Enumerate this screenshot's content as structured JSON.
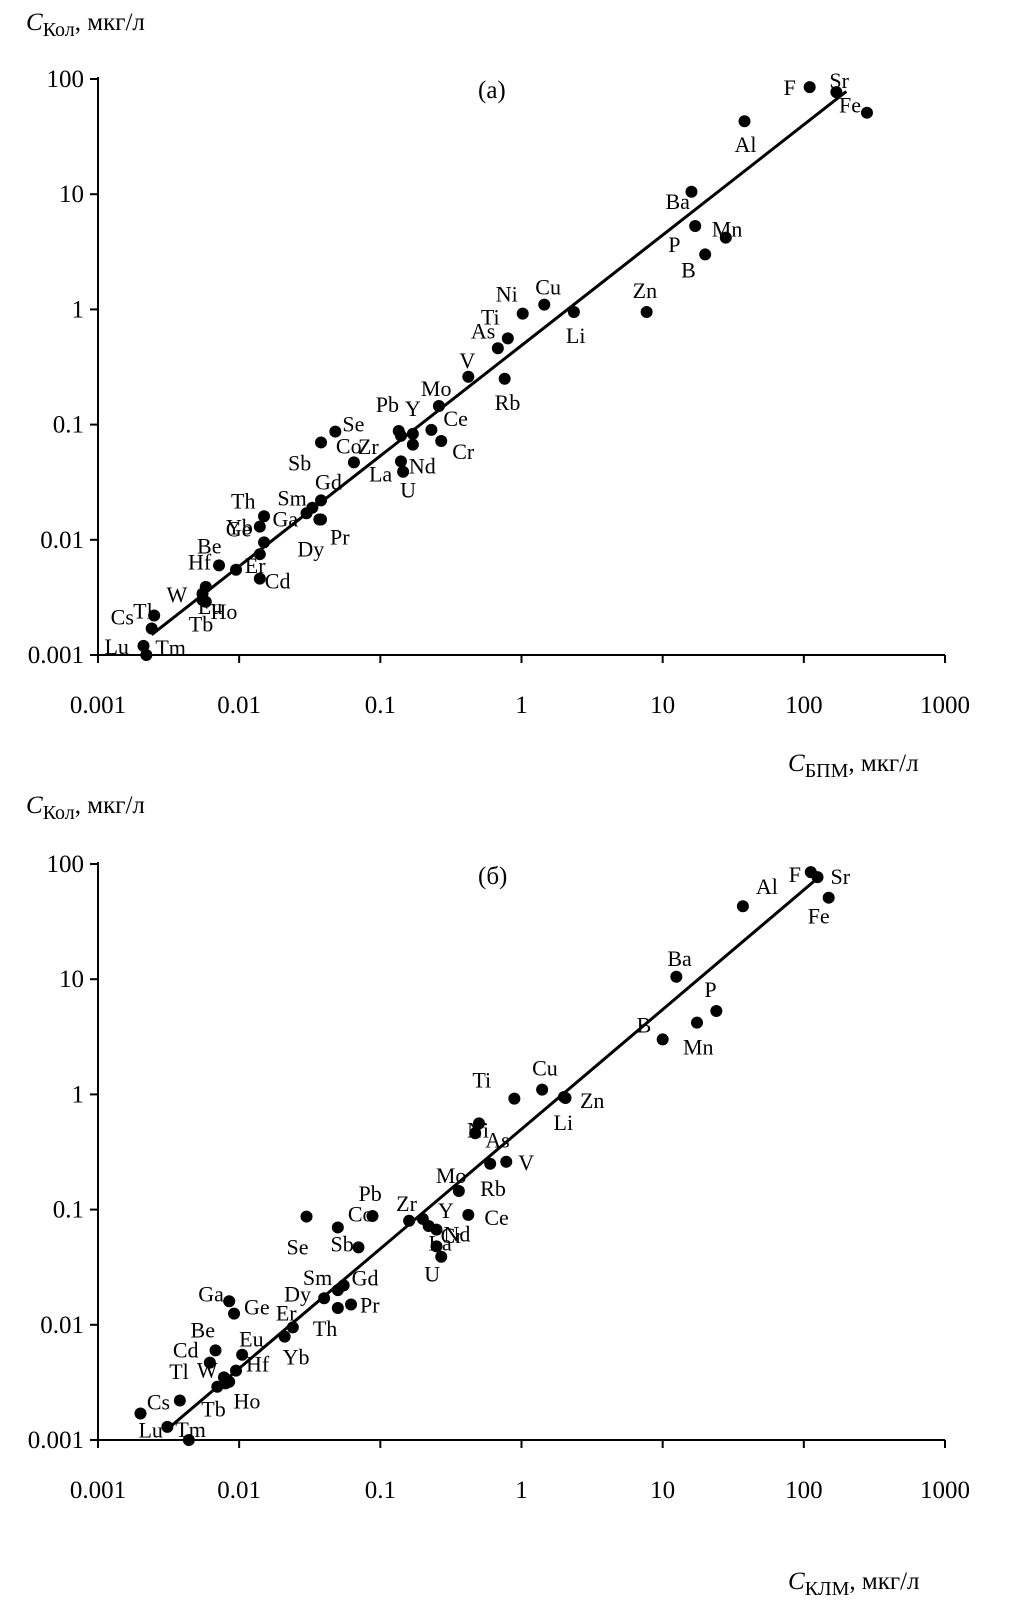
{
  "chart_data": [
    {
      "type": "scatter",
      "panel_label": "(а)",
      "xlabel": {
        "symbol": "C",
        "subscript": "БПМ",
        "unit": ", мкг/л"
      },
      "ylabel": {
        "symbol": "C",
        "subscript": "Кол",
        "unit": ", мкг/л"
      },
      "xscale": "log",
      "yscale": "log",
      "xlim": [
        0.001,
        1000
      ],
      "ylim": [
        0.001,
        100
      ],
      "xticks": [
        "0.001",
        "0.01",
        "0.1",
        "1",
        "10",
        "100",
        "1000"
      ],
      "yticks": [
        "0.001",
        "0.01",
        "0.1",
        "1",
        "10",
        "100"
      ],
      "grid": false,
      "trendline": {
        "x": [
          0.0024,
          200
        ],
        "y": [
          0.0015,
          78
        ]
      },
      "points": [
        {
          "label": "Sr",
          "x": 170,
          "y": 77
        },
        {
          "label": "F",
          "x": 110,
          "y": 85
        },
        {
          "label": "Fe",
          "x": 280,
          "y": 51
        },
        {
          "label": "Al",
          "x": 38,
          "y": 43
        },
        {
          "label": "Ba",
          "x": 16,
          "y": 10.5
        },
        {
          "label": "Mn",
          "x": 28,
          "y": 4.2
        },
        {
          "label": "P",
          "x": 17,
          "y": 5.3
        },
        {
          "label": "B",
          "x": 20,
          "y": 3.0
        },
        {
          "label": "Zn",
          "x": 7.7,
          "y": 0.95
        },
        {
          "label": "Cu",
          "x": 1.45,
          "y": 1.1
        },
        {
          "label": "Ni",
          "x": 1.02,
          "y": 0.92
        },
        {
          "label": "Li",
          "x": 2.35,
          "y": 0.95
        },
        {
          "label": "Ti",
          "x": 0.8,
          "y": 0.56
        },
        {
          "label": "As",
          "x": 0.68,
          "y": 0.46
        },
        {
          "label": "V",
          "x": 0.42,
          "y": 0.26
        },
        {
          "label": "Rb",
          "x": 0.76,
          "y": 0.25
        },
        {
          "label": "Mo",
          "x": 0.26,
          "y": 0.145
        },
        {
          "label": "Pb",
          "x": 0.135,
          "y": 0.088
        },
        {
          "label": "Y",
          "x": 0.17,
          "y": 0.083
        },
        {
          "label": "Ce",
          "x": 0.23,
          "y": 0.09
        },
        {
          "label": "Cr",
          "x": 0.27,
          "y": 0.072
        },
        {
          "label": "Zr",
          "x": 0.14,
          "y": 0.08
        },
        {
          "label": "Se",
          "x": 0.048,
          "y": 0.087
        },
        {
          "label": "Sb",
          "x": 0.038,
          "y": 0.07
        },
        {
          "label": "Co",
          "x": 0.065,
          "y": 0.047
        },
        {
          "label": "Nd",
          "x": 0.17,
          "y": 0.067
        },
        {
          "label": "La",
          "x": 0.14,
          "y": 0.048
        },
        {
          "label": "U",
          "x": 0.145,
          "y": 0.039
        },
        {
          "label": "Gd",
          "x": 0.038,
          "y": 0.022
        },
        {
          "label": "Sm",
          "x": 0.033,
          "y": 0.019
        },
        {
          "label": "Ga",
          "x": 0.03,
          "y": 0.017
        },
        {
          "label": "Dy",
          "x": 0.037,
          "y": 0.015
        },
        {
          "label": "Pr",
          "x": 0.038,
          "y": 0.015
        },
        {
          "label": "Th",
          "x": 0.015,
          "y": 0.016
        },
        {
          "label": "Ge",
          "x": 0.014,
          "y": 0.013
        },
        {
          "label": "Yb",
          "x": 0.015,
          "y": 0.0095
        },
        {
          "label": "Er",
          "x": 0.014,
          "y": 0.0075
        },
        {
          "label": "Be",
          "x": 0.0072,
          "y": 0.006
        },
        {
          "label": "Hf",
          "x": 0.0095,
          "y": 0.0055
        },
        {
          "label": "Cd",
          "x": 0.014,
          "y": 0.0046
        },
        {
          "label": "Eu",
          "x": 0.0058,
          "y": 0.0039
        },
        {
          "label": "W",
          "x": 0.0055,
          "y": 0.0034
        },
        {
          "label": "Tb",
          "x": 0.0058,
          "y": 0.0029
        },
        {
          "label": "Ho",
          "x": 0.0055,
          "y": 0.003
        },
        {
          "label": "Tl",
          "x": 0.0025,
          "y": 0.0022
        },
        {
          "label": "Cs",
          "x": 0.0024,
          "y": 0.0017
        },
        {
          "label": "Lu",
          "x": 0.0021,
          "y": 0.0012
        },
        {
          "label": "Tm",
          "x": 0.0022,
          "y": 0.001
        }
      ]
    },
    {
      "type": "scatter",
      "panel_label": "(б)",
      "xlabel": {
        "symbol": "C",
        "subscript": "КЛМ",
        "unit": ", мкг/л"
      },
      "ylabel": {
        "symbol": "C",
        "subscript": "Кол",
        "unit": ", мкг/л"
      },
      "xscale": "log",
      "yscale": "log",
      "xlim": [
        0.001,
        1000
      ],
      "ylim": [
        0.001,
        100
      ],
      "xticks": [
        "0.001",
        "0.01",
        "0.1",
        "1",
        "10",
        "100",
        "1000"
      ],
      "yticks": [
        "0.001",
        "0.01",
        "0.1",
        "1",
        "10",
        "100"
      ],
      "grid": false,
      "trendline": {
        "x": [
          0.003,
          120
        ],
        "y": [
          0.0012,
          72
        ]
      },
      "points": [
        {
          "label": "F",
          "x": 112,
          "y": 85
        },
        {
          "label": "Sr",
          "x": 125,
          "y": 77
        },
        {
          "label": "Fe",
          "x": 150,
          "y": 51
        },
        {
          "label": "Al",
          "x": 37,
          "y": 43
        },
        {
          "label": "Ba",
          "x": 12.5,
          "y": 10.5
        },
        {
          "label": "P",
          "x": 24,
          "y": 5.3
        },
        {
          "label": "Mn",
          "x": 17.5,
          "y": 4.2
        },
        {
          "label": "B",
          "x": 10,
          "y": 3.0
        },
        {
          "label": "Cu",
          "x": 1.4,
          "y": 1.1
        },
        {
          "label": "Zn",
          "x": 2.0,
          "y": 0.95
        },
        {
          "label": "Li",
          "x": 2.05,
          "y": 0.93
        },
        {
          "label": "Ti",
          "x": 0.89,
          "y": 0.92
        },
        {
          "label": "Ni",
          "x": 0.5,
          "y": 0.56
        },
        {
          "label": "As",
          "x": 0.47,
          "y": 0.46
        },
        {
          "label": "V",
          "x": 0.78,
          "y": 0.26
        },
        {
          "label": "Rb",
          "x": 0.6,
          "y": 0.25
        },
        {
          "label": "Mo",
          "x": 0.36,
          "y": 0.145
        },
        {
          "label": "Pb",
          "x": 0.088,
          "y": 0.088
        },
        {
          "label": "Zr",
          "x": 0.16,
          "y": 0.08
        },
        {
          "label": "Y",
          "x": 0.2,
          "y": 0.083
        },
        {
          "label": "Cr",
          "x": 0.22,
          "y": 0.072
        },
        {
          "label": "Ce",
          "x": 0.42,
          "y": 0.09
        },
        {
          "label": "Nd",
          "x": 0.25,
          "y": 0.067
        },
        {
          "label": "Se",
          "x": 0.03,
          "y": 0.087
        },
        {
          "label": "Co",
          "x": 0.05,
          "y": 0.07
        },
        {
          "label": "Sb",
          "x": 0.07,
          "y": 0.047
        },
        {
          "label": "La",
          "x": 0.25,
          "y": 0.048
        },
        {
          "label": "U",
          "x": 0.27,
          "y": 0.039
        },
        {
          "label": "Sm",
          "x": 0.05,
          "y": 0.02
        },
        {
          "label": "Gd",
          "x": 0.055,
          "y": 0.022
        },
        {
          "label": "Dy",
          "x": 0.04,
          "y": 0.017
        },
        {
          "label": "Pr",
          "x": 0.062,
          "y": 0.015
        },
        {
          "label": "Th",
          "x": 0.05,
          "y": 0.014
        },
        {
          "label": "Er",
          "x": 0.024,
          "y": 0.0095
        },
        {
          "label": "Ga",
          "x": 0.0085,
          "y": 0.016
        },
        {
          "label": "Ge",
          "x": 0.0092,
          "y": 0.0125
        },
        {
          "label": "Be",
          "x": 0.0068,
          "y": 0.006
        },
        {
          "label": "Eu",
          "x": 0.0105,
          "y": 0.0055
        },
        {
          "label": "Yb",
          "x": 0.021,
          "y": 0.0079
        },
        {
          "label": "Cd",
          "x": 0.0062,
          "y": 0.0047
        },
        {
          "label": "Hf",
          "x": 0.0095,
          "y": 0.004
        },
        {
          "label": "W",
          "x": 0.0078,
          "y": 0.0035
        },
        {
          "label": "Tl",
          "x": 0.0085,
          "y": 0.0032
        },
        {
          "label": "Ho",
          "x": 0.008,
          "y": 0.0031
        },
        {
          "label": "Tb",
          "x": 0.007,
          "y": 0.0029
        },
        {
          "label": "Cs",
          "x": 0.0038,
          "y": 0.0022
        },
        {
          "label": "Lu",
          "x": 0.002,
          "y": 0.0017
        },
        {
          "label": "Tm",
          "x": 0.0031,
          "y": 0.0013
        },
        {
          "label": "",
          "x": 0.0044,
          "y": 0.001
        }
      ]
    }
  ]
}
